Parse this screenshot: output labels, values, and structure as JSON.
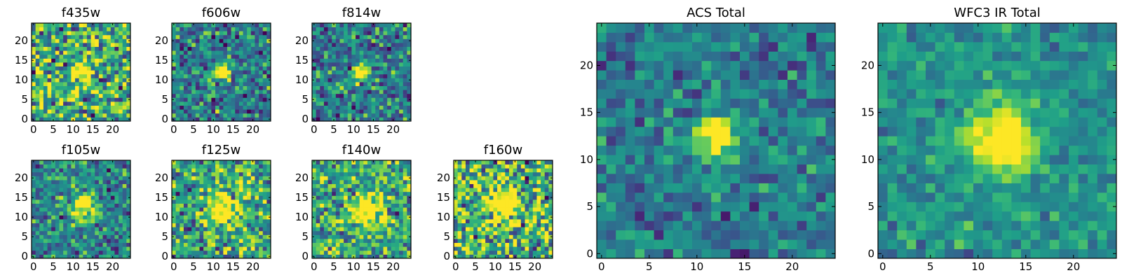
{
  "chart_data": [
    {
      "type": "heatmap",
      "title": "f435w",
      "colormap": "viridis",
      "xlim": [
        0,
        24
      ],
      "ylim": [
        0,
        24
      ],
      "xticks": [
        "0",
        "5",
        "10",
        "15",
        "20"
      ],
      "yticks": [
        "0",
        "5",
        "10",
        "15",
        "20"
      ],
      "source_center": [
        12.5,
        12.5
      ],
      "peak_sigma": 1.6,
      "noise_level": 0.55,
      "background": 0.62,
      "seed": 11
    },
    {
      "type": "heatmap",
      "title": "f606w",
      "colormap": "viridis",
      "xlim": [
        0,
        24
      ],
      "ylim": [
        0,
        24
      ],
      "xticks": [
        "0",
        "5",
        "10",
        "15",
        "20"
      ],
      "yticks": [
        "0",
        "5",
        "10",
        "15",
        "20"
      ],
      "source_center": [
        12,
        12
      ],
      "peak_sigma": 1.5,
      "noise_level": 0.38,
      "background": 0.42,
      "seed": 23
    },
    {
      "type": "heatmap",
      "title": "f814w",
      "colormap": "viridis",
      "xlim": [
        0,
        24
      ],
      "ylim": [
        0,
        24
      ],
      "xticks": [
        "0",
        "5",
        "10",
        "15",
        "20"
      ],
      "yticks": [
        "0",
        "5",
        "10",
        "15",
        "20"
      ],
      "source_center": [
        12,
        12
      ],
      "peak_sigma": 1.5,
      "noise_level": 0.38,
      "background": 0.42,
      "seed": 37
    },
    {
      "type": "heatmap",
      "title": "f105w",
      "colormap": "viridis",
      "xlim": [
        0,
        24
      ],
      "ylim": [
        0,
        24
      ],
      "xticks": [
        "0",
        "5",
        "10",
        "15",
        "20"
      ],
      "yticks": [
        "0",
        "5",
        "10",
        "15",
        "20"
      ],
      "source_center": [
        12.5,
        12.5
      ],
      "peak_sigma": 2.2,
      "noise_level": 0.35,
      "background": 0.45,
      "seed": 41
    },
    {
      "type": "heatmap",
      "title": "f125w",
      "colormap": "viridis",
      "xlim": [
        0,
        24
      ],
      "ylim": [
        0,
        24
      ],
      "xticks": [
        "0",
        "5",
        "10",
        "15",
        "20"
      ],
      "yticks": [
        "0",
        "5",
        "10",
        "15",
        "20"
      ],
      "source_center": [
        12.5,
        12
      ],
      "peak_sigma": 2.4,
      "noise_level": 0.45,
      "background": 0.6,
      "seed": 53
    },
    {
      "type": "heatmap",
      "title": "f140w",
      "colormap": "viridis",
      "xlim": [
        0,
        24
      ],
      "ylim": [
        0,
        24
      ],
      "xticks": [
        "0",
        "5",
        "10",
        "15",
        "20"
      ],
      "yticks": [
        "0",
        "5",
        "10",
        "15",
        "20"
      ],
      "source_center": [
        13,
        12
      ],
      "peak_sigma": 2.4,
      "noise_level": 0.42,
      "background": 0.62,
      "seed": 67
    },
    {
      "type": "heatmap",
      "title": "f160w",
      "colormap": "viridis",
      "xlim": [
        0,
        24
      ],
      "ylim": [
        0,
        24
      ],
      "xticks": [
        "0",
        "5",
        "10",
        "15",
        "20"
      ],
      "yticks": [
        "0",
        "5",
        "10",
        "15",
        "20"
      ],
      "source_center": [
        12,
        13
      ],
      "peak_sigma": 2.3,
      "noise_level": 0.55,
      "background": 0.66,
      "seed": 79
    },
    {
      "type": "heatmap",
      "title": "ACS Total",
      "colormap": "viridis",
      "xlim": [
        0,
        24
      ],
      "ylim": [
        0,
        24
      ],
      "xticks": [
        "0",
        "5",
        "10",
        "15",
        "20"
      ],
      "yticks": [
        "0",
        "5",
        "10",
        "15",
        "20"
      ],
      "source_center": [
        12,
        12.5
      ],
      "peak_sigma": 1.6,
      "noise_level": 0.26,
      "background": 0.42,
      "seed": 83
    },
    {
      "type": "heatmap",
      "title": "WFC3 IR Total",
      "colormap": "viridis",
      "xlim": [
        0,
        24
      ],
      "ylim": [
        0,
        24
      ],
      "xticks": [
        "0",
        "5",
        "10",
        "15",
        "20"
      ],
      "yticks": [
        "0",
        "5",
        "10",
        "15",
        "20"
      ],
      "source_center": [
        12.5,
        12
      ],
      "peak_sigma": 2.4,
      "noise_level": 0.2,
      "background": 0.5,
      "seed": 97
    }
  ]
}
